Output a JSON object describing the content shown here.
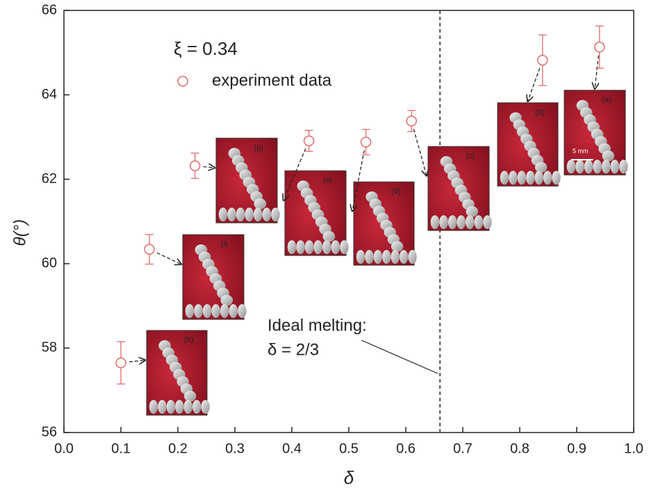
{
  "chart_data": {
    "type": "scatter",
    "x_label": "δ",
    "y_label": "θ(°)",
    "legend_title": "ξ = 0.34",
    "series": [
      {
        "name": "experiment data",
        "color": "#e46a6a",
        "x": [
          0.1,
          0.15,
          0.23,
          0.43,
          0.53,
          0.61,
          0.84,
          0.94
        ],
        "values": [
          57.65,
          60.34,
          62.32,
          62.91,
          62.88,
          63.38,
          64.82,
          65.13
        ],
        "errors": [
          0.5,
          0.35,
          0.3,
          0.25,
          0.3,
          0.25,
          0.6,
          0.5
        ]
      }
    ],
    "xlim": [
      0,
      1
    ],
    "xticks": [
      {
        "value": 0,
        "label": "0.0"
      },
      0.1,
      0.2,
      0.3,
      0.4,
      0.5,
      0.6,
      0.7,
      0.8,
      0.9,
      {
        "value": 1,
        "label": "1.0"
      }
    ],
    "ylim": [
      56,
      66
    ],
    "yticks": [
      56,
      58,
      60,
      62,
      64,
      66
    ],
    "vline": 0.66,
    "annotation": [
      "Ideal melting:",
      "δ = 2/3"
    ],
    "insets": [
      "(a)",
      "(b)",
      "(c)",
      "(d)",
      "(e)",
      "(f)",
      "(g)",
      "(h)"
    ],
    "scale_bar": "5 mm"
  }
}
